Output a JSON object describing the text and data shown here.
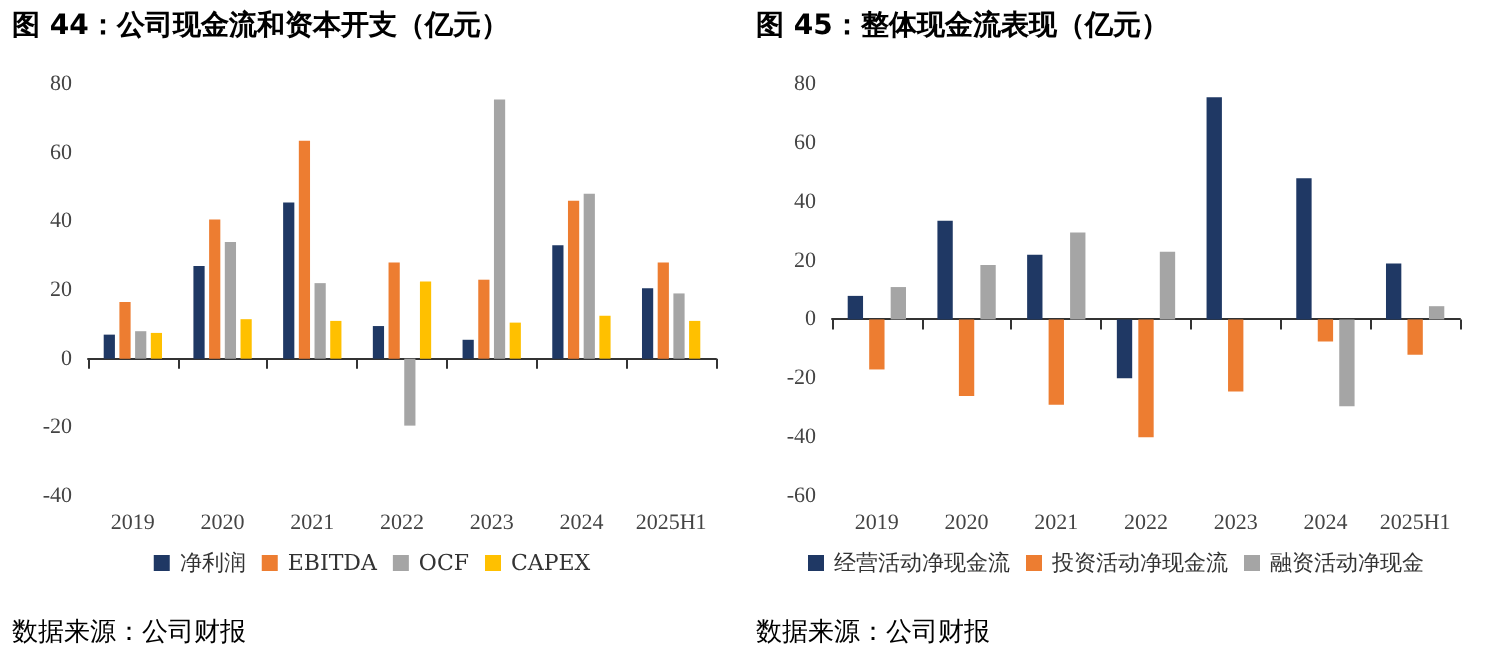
{
  "chart_data": [
    {
      "type": "bar",
      "title": "图 44：公司现金流和资本开支（亿元）",
      "categories": [
        "2019",
        "2020",
        "2021",
        "2022",
        "2023",
        "2024",
        "2025H1"
      ],
      "series": [
        {
          "name": "净利润",
          "color": "#1f3864",
          "values": [
            7,
            27,
            45.5,
            9.5,
            5.5,
            33,
            20.5
          ]
        },
        {
          "name": "EBITDA",
          "color": "#ed7d31",
          "values": [
            16.5,
            40.5,
            63.5,
            28,
            23,
            46,
            28
          ]
        },
        {
          "name": "OCF",
          "color": "#a5a5a5",
          "values": [
            8,
            34,
            22,
            -19.5,
            75.5,
            48,
            19
          ]
        },
        {
          "name": "CAPEX",
          "color": "#ffc000",
          "values": [
            7.5,
            11.5,
            11,
            22.5,
            10.5,
            12.5,
            11
          ]
        }
      ],
      "ylim": [
        -40,
        80
      ],
      "yticks": [
        -40,
        -20,
        0,
        20,
        40,
        60,
        80
      ],
      "legend": "bottom",
      "annotations": [
        "数据来源：公司财报"
      ]
    },
    {
      "type": "bar",
      "title": "图 45：整体现金流表现（亿元）",
      "categories": [
        "2019",
        "2020",
        "2021",
        "2022",
        "2023",
        "2024",
        "2025H1"
      ],
      "series": [
        {
          "name": "经营活动净现金流",
          "color": "#1f3864",
          "values": [
            8,
            33.5,
            22,
            -20,
            75.5,
            48,
            19
          ]
        },
        {
          "name": "投资活动净现金流",
          "color": "#ed7d31",
          "values": [
            -17,
            -26,
            -29,
            -40,
            -24.5,
            -7.5,
            -12
          ]
        },
        {
          "name": "融资活动净现金",
          "color": "#a5a5a5",
          "values": [
            11,
            18.5,
            29.5,
            23,
            0,
            -29.5,
            4.5
          ]
        }
      ],
      "ylim": [
        -60,
        80
      ],
      "yticks": [
        -60,
        -40,
        -20,
        0,
        20,
        40,
        60,
        80
      ],
      "legend": "bottom",
      "annotations": [
        "数据来源：公司财报"
      ]
    }
  ]
}
